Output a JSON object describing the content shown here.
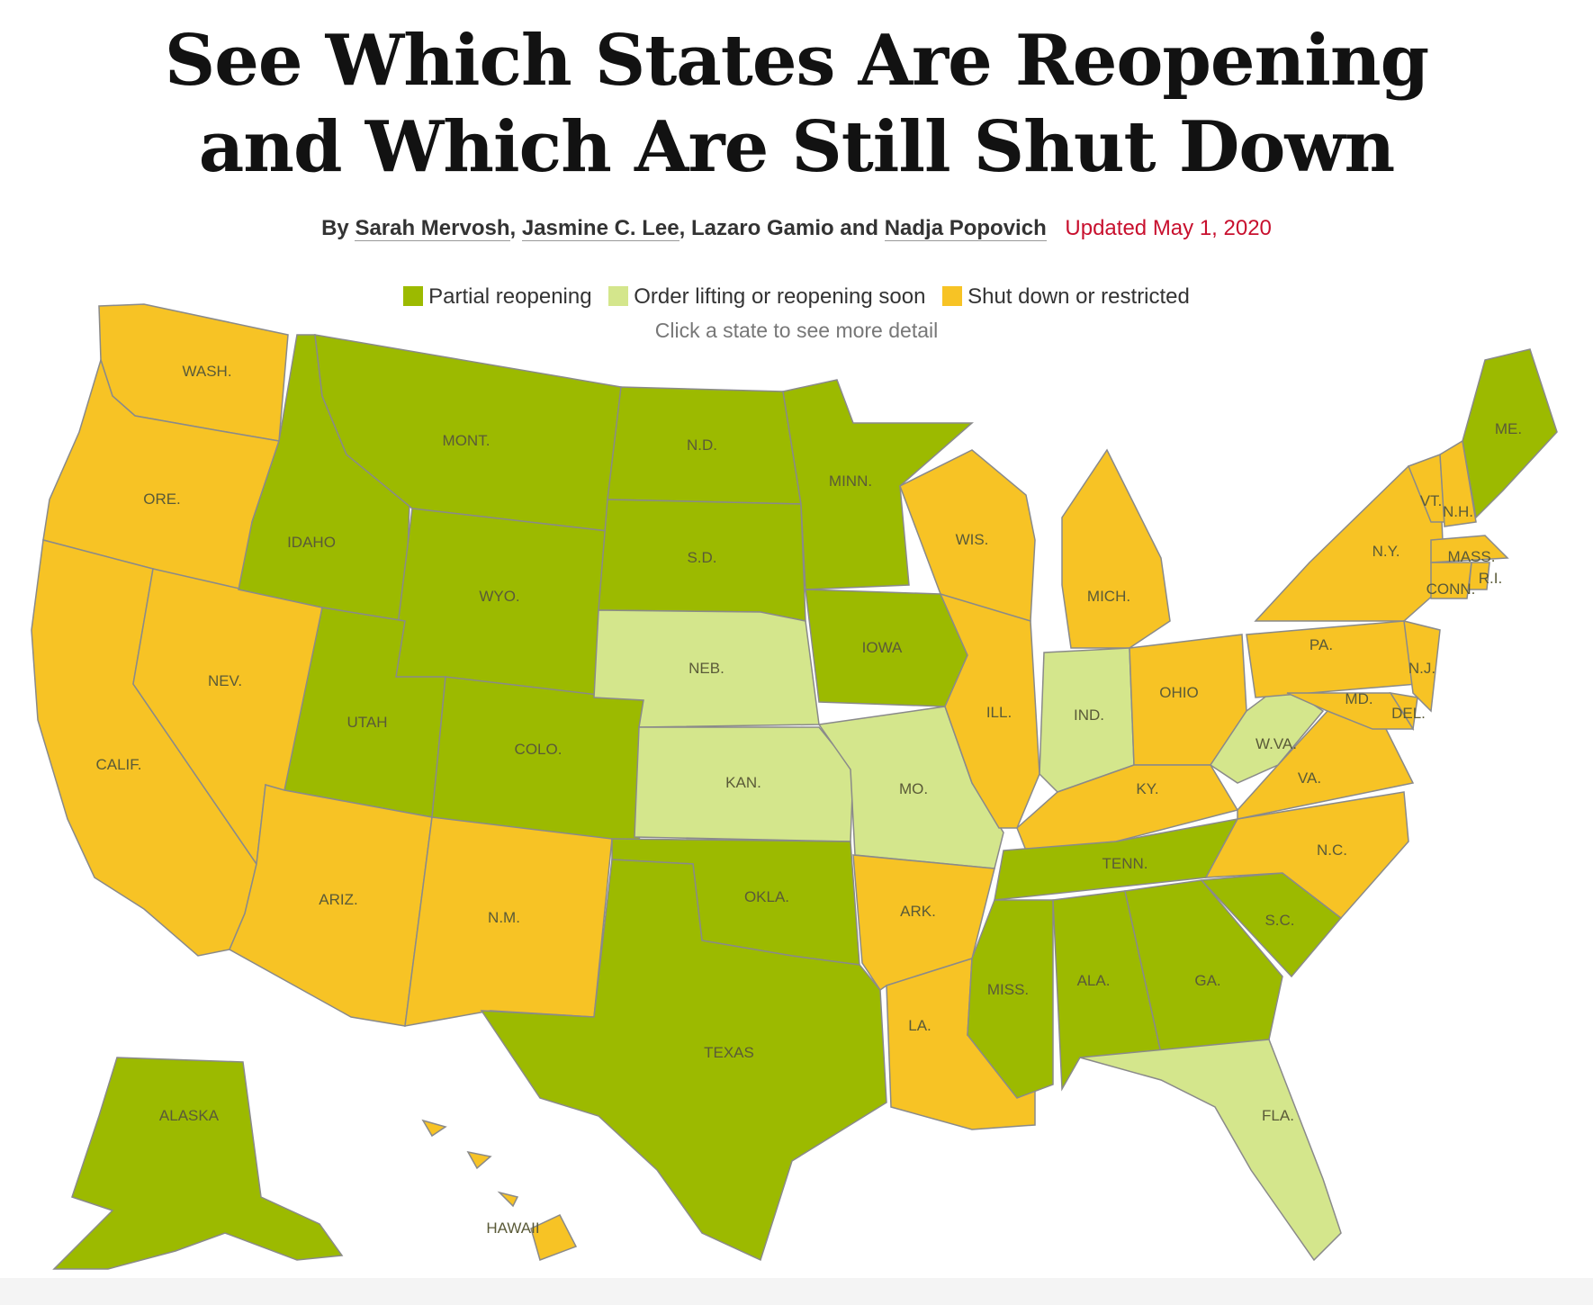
{
  "title": {
    "line1": "See Which States Are Reopening",
    "line2": "and Which Are Still Shut Down"
  },
  "byline": {
    "prefix": "By",
    "author1": "Sarah Mervosh",
    "sep1": ",",
    "author2": "Jasmine C. Lee",
    "sep2": ",",
    "author3": "Lazaro Gamio",
    "and": "and",
    "author4": "Nadja Popovich",
    "updated": "Updated May 1, 2020"
  },
  "legend": {
    "items": [
      {
        "label": "Partial reopening",
        "color": "#9cba00"
      },
      {
        "label": "Order lifting or reopening soon",
        "color": "#d4e68c"
      },
      {
        "label": "Shut down or restricted",
        "color": "#f7c325"
      }
    ]
  },
  "hint": "Click a state to see more detail",
  "colors": {
    "partial": "#9cba00",
    "soon": "#d4e68c",
    "shut": "#f7c325",
    "border": "#8a8a8a"
  },
  "states": {
    "wa": {
      "label": "WASH.",
      "status": "shut"
    },
    "or": {
      "label": "ORE.",
      "status": "shut"
    },
    "ca": {
      "label": "CALIF.",
      "status": "shut"
    },
    "nv": {
      "label": "NEV.",
      "status": "shut"
    },
    "id": {
      "label": "IDAHO",
      "status": "partial"
    },
    "mt": {
      "label": "MONT.",
      "status": "partial"
    },
    "wy": {
      "label": "WYO.",
      "status": "partial"
    },
    "ut": {
      "label": "UTAH",
      "status": "partial"
    },
    "az": {
      "label": "ARIZ.",
      "status": "shut"
    },
    "co": {
      "label": "COLO.",
      "status": "partial"
    },
    "nm": {
      "label": "N.M.",
      "status": "shut"
    },
    "nd": {
      "label": "N.D.",
      "status": "partial"
    },
    "sd": {
      "label": "S.D.",
      "status": "partial"
    },
    "ne": {
      "label": "NEB.",
      "status": "soon"
    },
    "ks": {
      "label": "KAN.",
      "status": "soon"
    },
    "ok": {
      "label": "OKLA.",
      "status": "partial"
    },
    "tx": {
      "label": "TEXAS",
      "status": "partial"
    },
    "mn": {
      "label": "MINN.",
      "status": "partial"
    },
    "ia": {
      "label": "IOWA",
      "status": "partial"
    },
    "mo": {
      "label": "MO.",
      "status": "soon"
    },
    "ar": {
      "label": "ARK.",
      "status": "shut"
    },
    "la": {
      "label": "LA.",
      "status": "shut"
    },
    "wi": {
      "label": "WIS.",
      "status": "shut"
    },
    "il": {
      "label": "ILL.",
      "status": "shut"
    },
    "mi": {
      "label": "MICH.",
      "status": "shut"
    },
    "in": {
      "label": "IND.",
      "status": "soon"
    },
    "oh": {
      "label": "OHIO",
      "status": "shut"
    },
    "ky": {
      "label": "KY.",
      "status": "shut"
    },
    "tn": {
      "label": "TENN.",
      "status": "partial"
    },
    "ms": {
      "label": "MISS.",
      "status": "partial"
    },
    "al": {
      "label": "ALA.",
      "status": "partial"
    },
    "ga": {
      "label": "GA.",
      "status": "partial"
    },
    "fl": {
      "label": "FLA.",
      "status": "soon"
    },
    "sc": {
      "label": "S.C.",
      "status": "partial"
    },
    "nc": {
      "label": "N.C.",
      "status": "shut"
    },
    "va": {
      "label": "VA.",
      "status": "shut"
    },
    "wv": {
      "label": "W.VA.",
      "status": "soon"
    },
    "pa": {
      "label": "PA.",
      "status": "shut"
    },
    "ny": {
      "label": "N.Y.",
      "status": "shut"
    },
    "nj": {
      "label": "N.J.",
      "status": "shut"
    },
    "de": {
      "label": "DEL.",
      "status": "shut"
    },
    "md": {
      "label": "MD.",
      "status": "shut"
    },
    "vt": {
      "label": "VT.",
      "status": "shut"
    },
    "nh": {
      "label": "N.H.",
      "status": "shut"
    },
    "me": {
      "label": "ME.",
      "status": "partial"
    },
    "ma": {
      "label": "MASS.",
      "status": "shut"
    },
    "ct": {
      "label": "CONN.",
      "status": "shut"
    },
    "ri": {
      "label": "R.I.",
      "status": "shut"
    },
    "ak": {
      "label": "ALASKA",
      "status": "partial"
    },
    "hi": {
      "label": "HAWAII",
      "status": "shut"
    }
  }
}
